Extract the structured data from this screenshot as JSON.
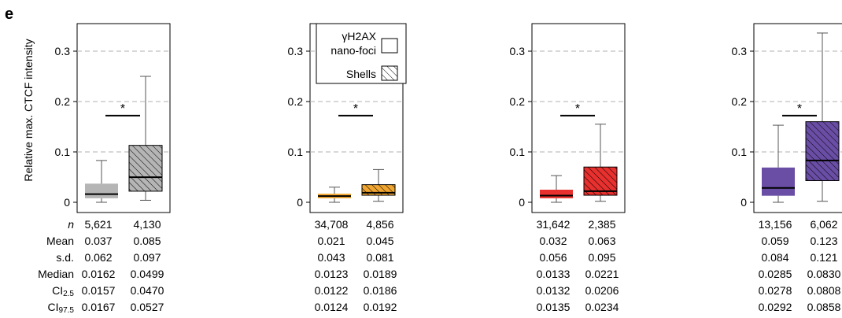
{
  "figure": {
    "panel_label": "e",
    "ylabel": "Relative max. CTCF intensity",
    "significance_mark": "*",
    "legend": {
      "line1": "γH2AX",
      "line2": "nano-foci",
      "line3": "Shells"
    },
    "stat_labels": {
      "n": "n",
      "mean": "Mean",
      "sd": "s.d.",
      "median": "Median",
      "ci25_main": "CI",
      "ci25_sub": "2.5",
      "ci975_main": "CI",
      "ci975_sub": "97.5"
    }
  },
  "colors": {
    "panel1": "#b5b5b5",
    "panel2": "#f0a530",
    "panel3": "#e8302e",
    "panel4": "#6a4ea5"
  },
  "chart_data": [
    {
      "type": "box",
      "ylim": [
        0,
        0.35
      ],
      "yticks": [
        "0",
        "0.1",
        "0.2",
        "0.3"
      ],
      "ytick_values": [
        0,
        0.1,
        0.2,
        0.3
      ],
      "grid": "dashed horizontal",
      "boxes": [
        {
          "group": "nano-foci",
          "whisker_low": 0.0,
          "q1": 0.008,
          "median": 0.0162,
          "q3": 0.037,
          "whisker_high": 0.083
        },
        {
          "group": "shells",
          "whisker_low": 0.004,
          "q1": 0.022,
          "median": 0.0499,
          "q3": 0.113,
          "whisker_high": 0.25
        }
      ],
      "significance_y": 0.172,
      "stats": {
        "n": [
          "5,621",
          "4,130"
        ],
        "mean": [
          "0.037",
          "0.085"
        ],
        "sd": [
          "0.062",
          "0.097"
        ],
        "median": [
          "0.0162",
          "0.0499"
        ],
        "ci25": [
          "0.0157",
          "0.0470"
        ],
        "ci975": [
          "0.0167",
          "0.0527"
        ]
      }
    },
    {
      "type": "box",
      "ylim": [
        0,
        0.35
      ],
      "yticks": [
        "0",
        "0.1",
        "0.2",
        "0.3"
      ],
      "ytick_values": [
        0,
        0.1,
        0.2,
        0.3
      ],
      "grid": "dashed horizontal",
      "boxes": [
        {
          "group": "nano-foci",
          "whisker_low": 0.0,
          "q1": 0.008,
          "median": 0.0123,
          "q3": 0.017,
          "whisker_high": 0.03
        },
        {
          "group": "shells",
          "whisker_low": 0.002,
          "q1": 0.014,
          "median": 0.0189,
          "q3": 0.035,
          "whisker_high": 0.065
        }
      ],
      "significance_y": 0.172,
      "stats": {
        "n": [
          "34,708",
          "4,856"
        ],
        "mean": [
          "0.021",
          "0.045"
        ],
        "sd": [
          "0.043",
          "0.081"
        ],
        "median": [
          "0.0123",
          "0.0189"
        ],
        "ci25": [
          "0.0122",
          "0.0186"
        ],
        "ci975": [
          "0.0124",
          "0.0192"
        ]
      }
    },
    {
      "type": "box",
      "ylim": [
        0,
        0.35
      ],
      "yticks": [
        "0",
        "0.1",
        "0.2",
        "0.3"
      ],
      "ytick_values": [
        0,
        0.1,
        0.2,
        0.3
      ],
      "grid": "dashed horizontal",
      "boxes": [
        {
          "group": "nano-foci",
          "whisker_low": 0.0,
          "q1": 0.008,
          "median": 0.0133,
          "q3": 0.025,
          "whisker_high": 0.053
        },
        {
          "group": "shells",
          "whisker_low": 0.002,
          "q1": 0.014,
          "median": 0.0221,
          "q3": 0.07,
          "whisker_high": 0.155
        }
      ],
      "significance_y": 0.172,
      "stats": {
        "n": [
          "31,642",
          "2,385"
        ],
        "mean": [
          "0.032",
          "0.063"
        ],
        "sd": [
          "0.056",
          "0.095"
        ],
        "median": [
          "0.0133",
          "0.0221"
        ],
        "ci25": [
          "0.0132",
          "0.0206"
        ],
        "ci975": [
          "0.0135",
          "0.0234"
        ]
      }
    },
    {
      "type": "box",
      "ylim": [
        0,
        0.35
      ],
      "yticks": [
        "0",
        "0.1",
        "0.2",
        "0.3"
      ],
      "ytick_values": [
        0,
        0.1,
        0.2,
        0.3
      ],
      "grid": "dashed horizontal",
      "boxes": [
        {
          "group": "nano-foci",
          "whisker_low": 0.0,
          "q1": 0.013,
          "median": 0.0285,
          "q3": 0.069,
          "whisker_high": 0.153
        },
        {
          "group": "shells",
          "whisker_low": 0.002,
          "q1": 0.043,
          "median": 0.083,
          "q3": 0.16,
          "whisker_high": 0.336
        }
      ],
      "significance_y": 0.172,
      "stats": {
        "n": [
          "13,156",
          "6,062"
        ],
        "mean": [
          "0.059",
          "0.123"
        ],
        "sd": [
          "0.084",
          "0.121"
        ],
        "median": [
          "0.0285",
          "0.0830"
        ],
        "ci25": [
          "0.0278",
          "0.0808"
        ],
        "ci975": [
          "0.0292",
          "0.0858"
        ]
      }
    }
  ]
}
